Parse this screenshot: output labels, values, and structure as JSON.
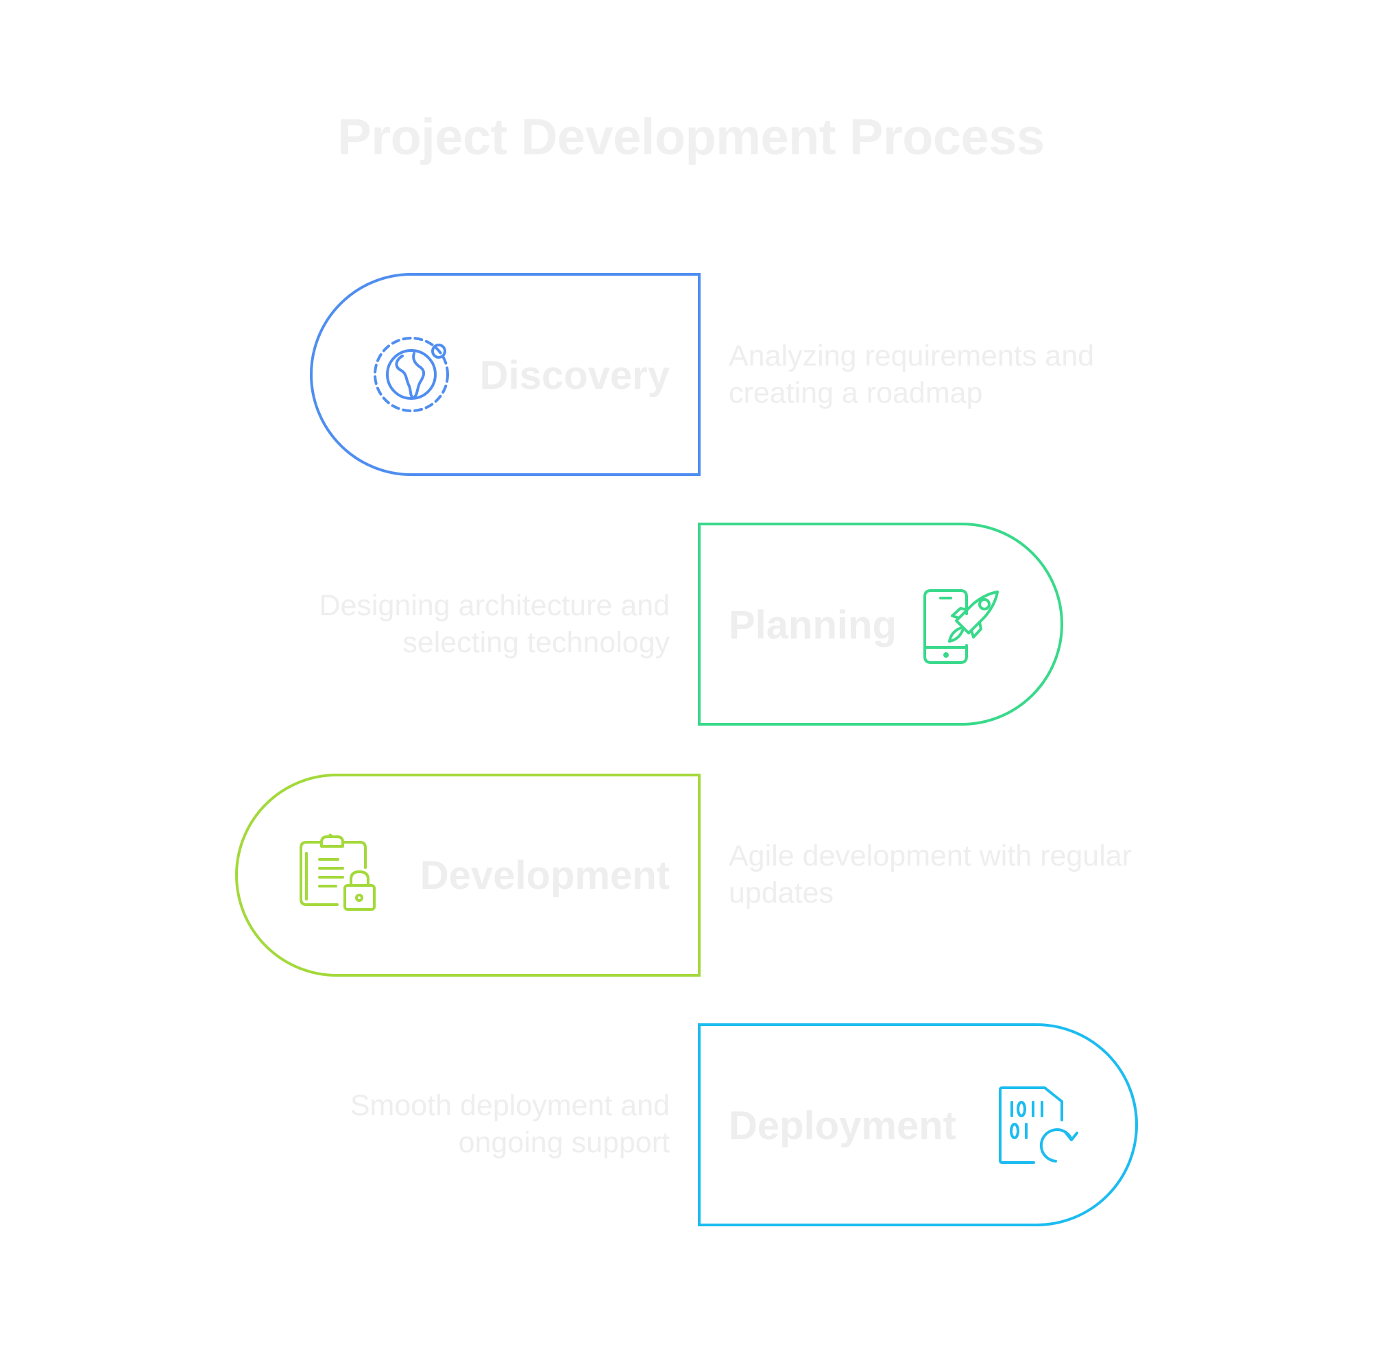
{
  "title": "Project Development Process",
  "colors": {
    "discovery": "#4f8ef0",
    "planning": "#38d98a",
    "development": "#a3d93b",
    "deployment": "#1cbcf0",
    "text": "#eeeeee"
  },
  "stages": [
    {
      "name": "Discovery",
      "description_line1": "Analyzing requirements and",
      "description_line2": "creating a roadmap",
      "icon": "globe-orbit-icon"
    },
    {
      "name": "Planning",
      "description_line1": "Designing architecture and",
      "description_line2": "selecting technology",
      "icon": "mobile-rocket-icon"
    },
    {
      "name": "Development",
      "description_line1": "Agile development with regular",
      "description_line2": "updates",
      "icon": "clipboard-lock-icon"
    },
    {
      "name": "Deployment",
      "description_line1": "Smooth deployment and",
      "description_line2": "ongoing support",
      "icon": "binary-file-refresh-icon"
    }
  ]
}
